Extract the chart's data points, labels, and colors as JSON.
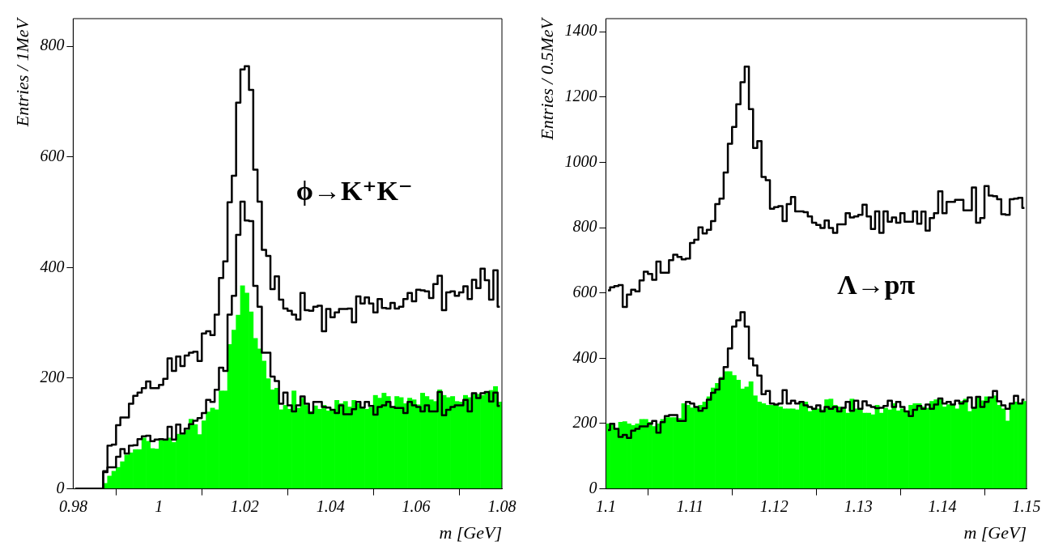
{
  "chart_data": [
    {
      "type": "histogram",
      "ylabel": "Entries / 1MeV",
      "xlabel": "m [GeV]",
      "annotations": [
        "ϕ→K⁺K⁻"
      ],
      "xlim": [
        0.98,
        1.08
      ],
      "xticks": [
        0.98,
        1,
        1.02,
        1.04,
        1.06,
        1.08
      ],
      "ylim": [
        0,
        850
      ],
      "yticks": [
        0,
        200,
        400,
        600,
        800
      ],
      "grid": false,
      "legend": false,
      "bins": [
        0.98,
        0.981,
        0.982,
        0.983,
        0.984,
        0.985,
        0.986,
        0.987,
        0.988,
        0.989,
        0.99,
        0.991,
        0.992,
        0.993,
        0.994,
        0.995,
        0.996,
        0.997,
        0.998,
        0.999,
        1,
        1.001,
        1.002,
        1.003,
        1.004,
        1.005,
        1.006,
        1.007,
        1.008,
        1.009,
        1.01,
        1.011,
        1.012,
        1.013,
        1.014,
        1.015,
        1.016,
        1.017,
        1.018,
        1.019,
        1.02,
        1.021,
        1.022,
        1.023,
        1.024,
        1.025,
        1.026,
        1.027,
        1.028,
        1.029,
        1.03,
        1.031,
        1.032,
        1.033,
        1.034,
        1.035,
        1.036,
        1.037,
        1.038,
        1.039,
        1.04,
        1.041,
        1.042,
        1.043,
        1.044,
        1.045,
        1.046,
        1.047,
        1.048,
        1.049,
        1.05,
        1.051,
        1.052,
        1.053,
        1.054,
        1.055,
        1.056,
        1.057,
        1.058,
        1.059,
        1.06,
        1.061,
        1.062,
        1.063,
        1.064,
        1.065,
        1.066,
        1.067,
        1.068,
        1.069,
        1.07,
        1.071,
        1.072,
        1.073,
        1.074,
        1.075,
        1.076,
        1.077,
        1.078,
        1.079,
        1.08
      ],
      "series": [
        {
          "type": "histogram",
          "color": "#00ff00",
          "values": [
            0,
            0,
            0,
            0,
            0,
            0,
            0,
            10,
            23,
            32,
            39,
            49,
            61,
            65,
            71,
            71,
            92,
            86,
            73,
            72,
            88,
            88,
            92,
            84,
            99,
            98,
            106,
            126,
            116,
            98,
            123,
            139,
            146,
            143,
            177,
            177,
            261,
            287,
            314,
            367,
            354,
            320,
            272,
            253,
            231,
            199,
            179,
            182,
            143,
            151,
            144,
            177,
            146,
            164,
            151,
            140,
            150,
            144,
            151,
            141,
            143,
            160,
            154,
            158,
            148,
            160,
            154,
            148,
            144,
            147,
            169,
            164,
            173,
            167,
            148,
            167,
            165,
            154,
            164,
            161,
            152,
            173,
            167,
            161,
            158,
            179,
            169,
            165,
            167,
            158,
            157,
            169,
            165,
            173,
            171,
            169,
            175,
            178,
            185,
            157
          ]
        },
        {
          "type": "step",
          "color": "#000000",
          "x": [
            0.9805,
            0.9815,
            0.9825,
            0.9835,
            0.9845,
            0.9855,
            0.9865,
            0.9875,
            0.9885,
            0.9895,
            0.9905,
            0.9915,
            0.9925,
            0.9935,
            0.9945,
            0.9955,
            0.9965,
            0.9975,
            0.9985,
            0.9995,
            1.0005,
            1.0015,
            1.0025,
            1.0035,
            1.0045,
            1.0055,
            1.0065,
            1.0075,
            1.0085,
            1.0095,
            1.0105,
            1.0115,
            1.0125,
            1.0135,
            1.0145,
            1.0155,
            1.0165,
            1.0175,
            1.0185,
            1.0195,
            1.0205,
            1.0215,
            1.0225,
            1.0235,
            1.0245,
            1.0255,
            1.0265,
            1.0275,
            1.0285,
            1.0295,
            1.0305,
            1.0315,
            1.0325,
            1.0335,
            1.0345,
            1.0355,
            1.0365,
            1.0375,
            1.0385,
            1.0395,
            1.0405,
            1.0415,
            1.0425,
            1.0435,
            1.0445,
            1.0455,
            1.0465,
            1.0475,
            1.0485,
            1.0495,
            1.0505,
            1.0515,
            1.0525,
            1.0535,
            1.0545,
            1.0555,
            1.0565,
            1.0575,
            1.0585,
            1.0595,
            1.0605,
            1.0615,
            1.0625,
            1.0635,
            1.0645,
            1.0655,
            1.0665,
            1.0675,
            1.0685,
            1.0695,
            1.0705,
            1.0715,
            1.0725,
            1.0735,
            1.0745,
            1.0755,
            1.0765,
            1.0775,
            1.0785,
            1.0795
          ],
          "values": [
            0,
            0,
            0,
            0,
            0,
            0,
            0,
            32,
            78,
            80,
            115,
            129,
            129,
            154,
            168,
            174,
            182,
            194,
            182,
            182,
            188,
            199,
            236,
            213,
            239,
            222,
            241,
            246,
            248,
            231,
            281,
            285,
            278,
            315,
            381,
            411,
            518,
            566,
            698,
            758,
            764,
            721,
            577,
            519,
            432,
            421,
            361,
            384,
            342,
            326,
            322,
            315,
            306,
            354,
            323,
            322,
            329,
            331,
            285,
            325,
            310,
            319,
            325,
            325,
            326,
            301,
            348,
            335,
            346,
            335,
            319,
            343,
            327,
            326,
            336,
            326,
            329,
            343,
            354,
            339,
            360,
            359,
            357,
            345,
            370,
            385,
            323,
            355,
            357,
            349,
            355,
            366,
            343,
            378,
            363,
            398,
            377,
            342,
            395,
            329
          ]
        },
        {
          "type": "step",
          "color": "#000000",
          "x": [
            0.9805,
            0.9815,
            0.9825,
            0.9835,
            0.9845,
            0.9855,
            0.9865,
            0.9875,
            0.9885,
            0.9895,
            0.9905,
            0.9915,
            0.9925,
            0.9935,
            0.9945,
            0.9955,
            0.9965,
            0.9975,
            0.9985,
            0.9995,
            1.0005,
            1.0015,
            1.0025,
            1.0035,
            1.0045,
            1.0055,
            1.0065,
            1.0075,
            1.0085,
            1.0095,
            1.0105,
            1.0115,
            1.0125,
            1.0135,
            1.0145,
            1.0155,
            1.0165,
            1.0175,
            1.0185,
            1.0195,
            1.0205,
            1.0215,
            1.0225,
            1.0235,
            1.0245,
            1.0255,
            1.0265,
            1.0275,
            1.0285,
            1.0295,
            1.0305,
            1.0315,
            1.0325,
            1.0335,
            1.0345,
            1.0355,
            1.0365,
            1.0375,
            1.0385,
            1.0395,
            1.0405,
            1.0415,
            1.0425,
            1.0435,
            1.0445,
            1.0455,
            1.0465,
            1.0475,
            1.0485,
            1.0495,
            1.0505,
            1.0515,
            1.0525,
            1.0535,
            1.0545,
            1.0555,
            1.0565,
            1.0575,
            1.0585,
            1.0595,
            1.0605,
            1.0615,
            1.0625,
            1.0635,
            1.0645,
            1.0655,
            1.0665,
            1.0675,
            1.0685,
            1.0695,
            1.0705,
            1.0715,
            1.0725,
            1.0735,
            1.0745,
            1.0755,
            1.0765,
            1.0775,
            1.0785,
            1.0795
          ],
          "values": [
            0,
            0,
            0,
            0,
            0,
            0,
            0,
            30,
            39,
            39,
            58,
            72,
            64,
            78,
            79,
            90,
            95,
            96,
            86,
            89,
            90,
            89,
            112,
            89,
            116,
            100,
            109,
            117,
            123,
            128,
            137,
            161,
            157,
            179,
            219,
            213,
            315,
            349,
            459,
            519,
            485,
            484,
            367,
            329,
            246,
            246,
            203,
            195,
            154,
            174,
            151,
            140,
            151,
            167,
            154,
            137,
            157,
            157,
            148,
            147,
            143,
            137,
            151,
            135,
            135,
            144,
            157,
            147,
            157,
            150,
            134,
            148,
            151,
            157,
            148,
            146,
            146,
            137,
            157,
            151,
            148,
            140,
            151,
            140,
            140,
            175,
            133,
            143,
            148,
            151,
            151,
            161,
            140,
            173,
            164,
            173,
            175,
            158,
            174,
            150
          ]
        }
      ]
    },
    {
      "type": "histogram",
      "ylabel": "Entries / 0.5MeV",
      "xlabel": "m [GeV]",
      "annotations": [
        "Λ→pπ"
      ],
      "xlim": [
        1.1,
        1.15
      ],
      "xticks": [
        1.1,
        1.11,
        1.12,
        1.13,
        1.14,
        1.15
      ],
      "ylim": [
        0,
        1440
      ],
      "yticks": [
        0,
        200,
        400,
        600,
        800,
        1000,
        1200,
        1400
      ],
      "grid": false,
      "legend": false,
      "bins": [
        1.1,
        1.1005,
        1.101,
        1.1015,
        1.102,
        1.1025,
        1.103,
        1.1035,
        1.104,
        1.1045,
        1.105,
        1.1055,
        1.106,
        1.1065,
        1.107,
        1.1075,
        1.108,
        1.1085,
        1.109,
        1.1095,
        1.11,
        1.1105,
        1.111,
        1.1115,
        1.112,
        1.1125,
        1.113,
        1.1135,
        1.114,
        1.1145,
        1.115,
        1.1155,
        1.116,
        1.1165,
        1.117,
        1.1175,
        1.118,
        1.1185,
        1.119,
        1.1195,
        1.12,
        1.1205,
        1.121,
        1.1215,
        1.122,
        1.1225,
        1.123,
        1.1235,
        1.124,
        1.1245,
        1.125,
        1.1255,
        1.126,
        1.1265,
        1.127,
        1.1275,
        1.128,
        1.1285,
        1.129,
        1.1295,
        1.13,
        1.1305,
        1.131,
        1.1315,
        1.132,
        1.1325,
        1.133,
        1.1335,
        1.134,
        1.1345,
        1.135,
        1.1355,
        1.136,
        1.1365,
        1.137,
        1.1375,
        1.138,
        1.1385,
        1.139,
        1.1395,
        1.14,
        1.1405,
        1.141,
        1.1415,
        1.142,
        1.1425,
        1.143,
        1.1435,
        1.144,
        1.1445,
        1.145,
        1.1455,
        1.146,
        1.1465,
        1.147,
        1.1475,
        1.148,
        1.1485,
        1.149,
        1.1495,
        1.15
      ],
      "series": [
        {
          "type": "histogram",
          "color": "#00ff00",
          "values": [
            199,
            197,
            184,
            204,
            206,
            199,
            194,
            199,
            213,
            213,
            204,
            191,
            199,
            213,
            218,
            218,
            218,
            216,
            261,
            256,
            248,
            251,
            256,
            266,
            282,
            309,
            323,
            342,
            359,
            359,
            347,
            333,
            306,
            312,
            328,
            285,
            266,
            261,
            256,
            256,
            258,
            251,
            245,
            245,
            245,
            242,
            268,
            266,
            237,
            247,
            245,
            242,
            273,
            275,
            256,
            251,
            247,
            232,
            275,
            245,
            245,
            232,
            232,
            227,
            256,
            232,
            247,
            242,
            261,
            239,
            245,
            239,
            256,
            261,
            261,
            251,
            247,
            268,
            273,
            275,
            251,
            258,
            256,
            245,
            268,
            275,
            237,
            247,
            280,
            270,
            282,
            280,
            285,
            256,
            245,
            208,
            261,
            266,
            261,
            268
          ]
        },
        {
          "type": "step",
          "color": "#000000",
          "x": [
            1.10025,
            1.10075,
            1.10125,
            1.10175,
            1.10225,
            1.10275,
            1.10325,
            1.10375,
            1.10425,
            1.10475,
            1.10525,
            1.10575,
            1.10625,
            1.10675,
            1.10725,
            1.10775,
            1.10825,
            1.10875,
            1.10925,
            1.10975,
            1.11025,
            1.11075,
            1.11125,
            1.11175,
            1.11225,
            1.11275,
            1.11325,
            1.11375,
            1.11425,
            1.11475,
            1.11525,
            1.11575,
            1.11625,
            1.11675,
            1.11725,
            1.11775,
            1.11825,
            1.11875,
            1.11925,
            1.11975,
            1.12025,
            1.12075,
            1.12125,
            1.12175,
            1.12225,
            1.12275,
            1.12325,
            1.12375,
            1.12425,
            1.12475,
            1.12525,
            1.12575,
            1.12625,
            1.12675,
            1.12725,
            1.12775,
            1.12825,
            1.12875,
            1.12925,
            1.12975,
            1.13025,
            1.13075,
            1.13125,
            1.13175,
            1.13225,
            1.13275,
            1.13325,
            1.13375,
            1.13425,
            1.13475,
            1.13525,
            1.13575,
            1.13625,
            1.13675,
            1.13725,
            1.13775,
            1.13825,
            1.13875,
            1.13925,
            1.13975,
            1.14025,
            1.14075,
            1.14125,
            1.14175,
            1.14225,
            1.14275,
            1.14325,
            1.14375,
            1.14425,
            1.14475,
            1.14525,
            1.14575,
            1.14625,
            1.14675,
            1.14725,
            1.14775,
            1.14825,
            1.14875,
            1.14925,
            1.14975
          ],
          "values": [
            608,
            617,
            621,
            624,
            557,
            595,
            610,
            605,
            638,
            665,
            658,
            640,
            696,
            662,
            662,
            700,
            717,
            710,
            703,
            705,
            753,
            763,
            801,
            782,
            793,
            820,
            872,
            889,
            969,
            1057,
            1108,
            1178,
            1245,
            1293,
            1163,
            1044,
            1065,
            955,
            945,
            858,
            863,
            866,
            820,
            872,
            894,
            850,
            850,
            847,
            834,
            815,
            808,
            799,
            822,
            799,
            784,
            810,
            810,
            844,
            831,
            834,
            839,
            870,
            834,
            796,
            850,
            784,
            850,
            818,
            831,
            815,
            844,
            818,
            818,
            850,
            812,
            849,
            791,
            829,
            844,
            911,
            844,
            879,
            879,
            885,
            885,
            853,
            853,
            923,
            815,
            829,
            927,
            898,
            896,
            887,
            841,
            839,
            887,
            889,
            891,
            860
          ]
        },
        {
          "type": "step",
          "color": "#000000",
          "x": [
            1.10025,
            1.10075,
            1.10125,
            1.10175,
            1.10225,
            1.10275,
            1.10325,
            1.10375,
            1.10425,
            1.10475,
            1.10525,
            1.10575,
            1.10625,
            1.10675,
            1.10725,
            1.10775,
            1.10825,
            1.10875,
            1.10925,
            1.10975,
            1.11025,
            1.11075,
            1.11125,
            1.11175,
            1.11225,
            1.11275,
            1.11325,
            1.11375,
            1.11425,
            1.11475,
            1.11525,
            1.11575,
            1.11625,
            1.11675,
            1.11725,
            1.11775,
            1.11825,
            1.11875,
            1.11925,
            1.11975,
            1.12025,
            1.12075,
            1.12125,
            1.12175,
            1.12225,
            1.12275,
            1.12325,
            1.12375,
            1.12425,
            1.12475,
            1.12525,
            1.12575,
            1.12625,
            1.12675,
            1.12725,
            1.12775,
            1.12825,
            1.12875,
            1.12925,
            1.12975,
            1.13025,
            1.13075,
            1.13125,
            1.13175,
            1.13225,
            1.13275,
            1.13325,
            1.13375,
            1.13425,
            1.13475,
            1.13525,
            1.13575,
            1.13625,
            1.13675,
            1.13725,
            1.13775,
            1.13825,
            1.13875,
            1.13925,
            1.13975,
            1.14025,
            1.14075,
            1.14125,
            1.14175,
            1.14225,
            1.14275,
            1.14325,
            1.14375,
            1.14425,
            1.14475,
            1.14525,
            1.14575,
            1.14625,
            1.14675,
            1.14725,
            1.14775,
            1.14825,
            1.14875,
            1.14925,
            1.14975
          ],
          "values": [
            180,
            199,
            184,
            159,
            165,
            156,
            178,
            184,
            191,
            191,
            199,
            208,
            172,
            204,
            223,
            226,
            226,
            208,
            208,
            266,
            261,
            251,
            239,
            247,
            273,
            294,
            304,
            337,
            373,
            430,
            497,
            516,
            541,
            497,
            399,
            378,
            347,
            290,
            300,
            261,
            258,
            261,
            302,
            261,
            270,
            261,
            266,
            256,
            251,
            245,
            256,
            237,
            251,
            245,
            251,
            237,
            248,
            266,
            239,
            270,
            245,
            268,
            256,
            251,
            247,
            248,
            254,
            270,
            251,
            266,
            251,
            237,
            223,
            242,
            254,
            245,
            258,
            245,
            258,
            277,
            261,
            266,
            258,
            270,
            261,
            268,
            280,
            248,
            282,
            251,
            266,
            280,
            300,
            268,
            256,
            245,
            261,
            285,
            261,
            273
          ]
        }
      ]
    }
  ]
}
